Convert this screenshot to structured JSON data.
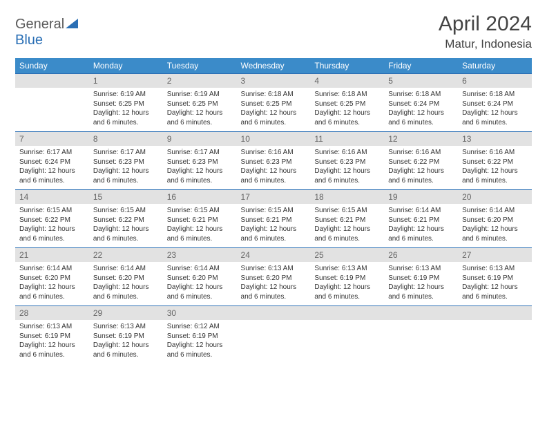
{
  "logo": {
    "text_general": "General",
    "text_blue": "Blue"
  },
  "title": "April 2024",
  "location": "Matur, Indonesia",
  "colors": {
    "header_bg": "#3b8bc9",
    "header_text": "#ffffff",
    "daynum_bg": "#e2e2e2",
    "daynum_text": "#666666",
    "border": "#2a6fb5",
    "body_text": "#333333",
    "logo_gray": "#5a5a5a",
    "logo_blue": "#2a6fb5"
  },
  "day_headers": [
    "Sunday",
    "Monday",
    "Tuesday",
    "Wednesday",
    "Thursday",
    "Friday",
    "Saturday"
  ],
  "layout": {
    "blank_leading": 1,
    "days_in_month": 30
  },
  "days": {
    "1": {
      "sunrise": "6:19 AM",
      "sunset": "6:25 PM",
      "daylight": "12 hours and 6 minutes."
    },
    "2": {
      "sunrise": "6:19 AM",
      "sunset": "6:25 PM",
      "daylight": "12 hours and 6 minutes."
    },
    "3": {
      "sunrise": "6:18 AM",
      "sunset": "6:25 PM",
      "daylight": "12 hours and 6 minutes."
    },
    "4": {
      "sunrise": "6:18 AM",
      "sunset": "6:25 PM",
      "daylight": "12 hours and 6 minutes."
    },
    "5": {
      "sunrise": "6:18 AM",
      "sunset": "6:24 PM",
      "daylight": "12 hours and 6 minutes."
    },
    "6": {
      "sunrise": "6:18 AM",
      "sunset": "6:24 PM",
      "daylight": "12 hours and 6 minutes."
    },
    "7": {
      "sunrise": "6:17 AM",
      "sunset": "6:24 PM",
      "daylight": "12 hours and 6 minutes."
    },
    "8": {
      "sunrise": "6:17 AM",
      "sunset": "6:23 PM",
      "daylight": "12 hours and 6 minutes."
    },
    "9": {
      "sunrise": "6:17 AM",
      "sunset": "6:23 PM",
      "daylight": "12 hours and 6 minutes."
    },
    "10": {
      "sunrise": "6:16 AM",
      "sunset": "6:23 PM",
      "daylight": "12 hours and 6 minutes."
    },
    "11": {
      "sunrise": "6:16 AM",
      "sunset": "6:23 PM",
      "daylight": "12 hours and 6 minutes."
    },
    "12": {
      "sunrise": "6:16 AM",
      "sunset": "6:22 PM",
      "daylight": "12 hours and 6 minutes."
    },
    "13": {
      "sunrise": "6:16 AM",
      "sunset": "6:22 PM",
      "daylight": "12 hours and 6 minutes."
    },
    "14": {
      "sunrise": "6:15 AM",
      "sunset": "6:22 PM",
      "daylight": "12 hours and 6 minutes."
    },
    "15": {
      "sunrise": "6:15 AM",
      "sunset": "6:22 PM",
      "daylight": "12 hours and 6 minutes."
    },
    "16": {
      "sunrise": "6:15 AM",
      "sunset": "6:21 PM",
      "daylight": "12 hours and 6 minutes."
    },
    "17": {
      "sunrise": "6:15 AM",
      "sunset": "6:21 PM",
      "daylight": "12 hours and 6 minutes."
    },
    "18": {
      "sunrise": "6:15 AM",
      "sunset": "6:21 PM",
      "daylight": "12 hours and 6 minutes."
    },
    "19": {
      "sunrise": "6:14 AM",
      "sunset": "6:21 PM",
      "daylight": "12 hours and 6 minutes."
    },
    "20": {
      "sunrise": "6:14 AM",
      "sunset": "6:20 PM",
      "daylight": "12 hours and 6 minutes."
    },
    "21": {
      "sunrise": "6:14 AM",
      "sunset": "6:20 PM",
      "daylight": "12 hours and 6 minutes."
    },
    "22": {
      "sunrise": "6:14 AM",
      "sunset": "6:20 PM",
      "daylight": "12 hours and 6 minutes."
    },
    "23": {
      "sunrise": "6:14 AM",
      "sunset": "6:20 PM",
      "daylight": "12 hours and 6 minutes."
    },
    "24": {
      "sunrise": "6:13 AM",
      "sunset": "6:20 PM",
      "daylight": "12 hours and 6 minutes."
    },
    "25": {
      "sunrise": "6:13 AM",
      "sunset": "6:19 PM",
      "daylight": "12 hours and 6 minutes."
    },
    "26": {
      "sunrise": "6:13 AM",
      "sunset": "6:19 PM",
      "daylight": "12 hours and 6 minutes."
    },
    "27": {
      "sunrise": "6:13 AM",
      "sunset": "6:19 PM",
      "daylight": "12 hours and 6 minutes."
    },
    "28": {
      "sunrise": "6:13 AM",
      "sunset": "6:19 PM",
      "daylight": "12 hours and 6 minutes."
    },
    "29": {
      "sunrise": "6:13 AM",
      "sunset": "6:19 PM",
      "daylight": "12 hours and 6 minutes."
    },
    "30": {
      "sunrise": "6:12 AM",
      "sunset": "6:19 PM",
      "daylight": "12 hours and 6 minutes."
    }
  },
  "labels": {
    "sunrise": "Sunrise: ",
    "sunset": "Sunset: ",
    "daylight": "Daylight: "
  }
}
